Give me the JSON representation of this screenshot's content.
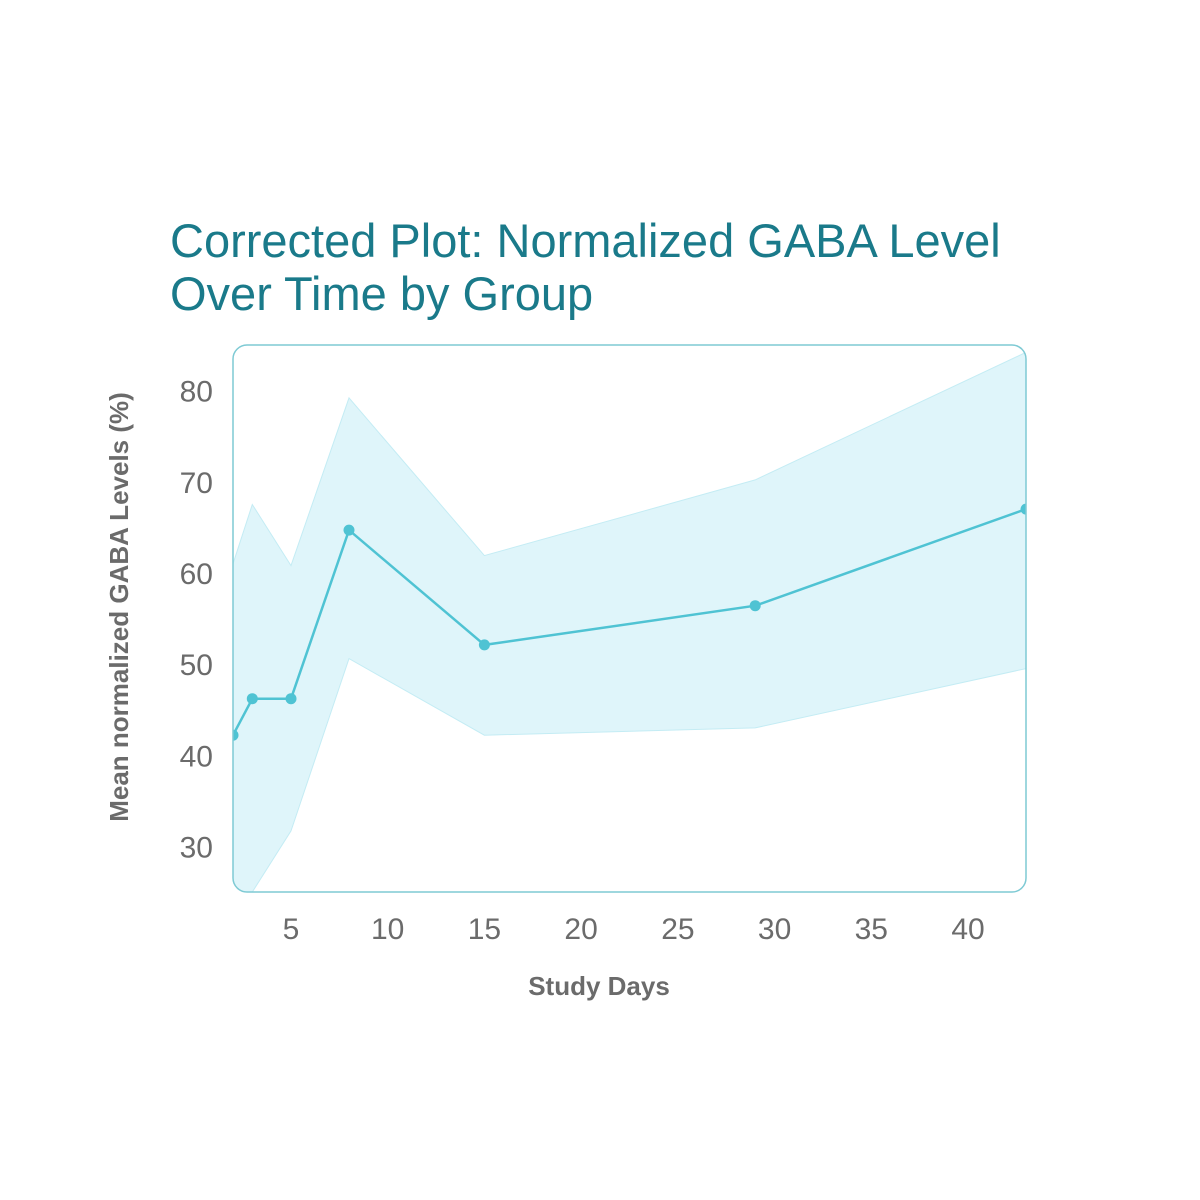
{
  "chart_data": {
    "type": "line",
    "title": "Corrected Plot: Normalized GABA Level Over Time by Group",
    "xlabel": "Study Days",
    "ylabel": "Mean normalized GABA Levels (%)",
    "xlim": [
      2,
      43
    ],
    "ylim": [
      25,
      85
    ],
    "xticks": [
      5,
      10,
      15,
      20,
      25,
      30,
      35,
      40
    ],
    "yticks": [
      30,
      40,
      50,
      60,
      70,
      80
    ],
    "series": [
      {
        "x": [
          2,
          3,
          5,
          8,
          15,
          29,
          43
        ],
        "y": [
          42.2,
          46.2,
          46.2,
          64.7,
          52.1,
          56.4,
          67.0
        ],
        "lower": [
          21.0,
          25.0,
          31.7,
          50.6,
          42.2,
          43.0,
          49.5
        ],
        "upper": [
          61.0,
          67.5,
          60.8,
          79.2,
          61.9,
          70.2,
          84.2
        ]
      }
    ],
    "colors": {
      "line": "#4fc3d3",
      "band": "#dff5fa",
      "band_edge": "#c4ecf4",
      "frame": "#7ecad4",
      "title": "#1a7a8a",
      "text": "#6b6b6b"
    },
    "grid": false,
    "legend": "none"
  }
}
